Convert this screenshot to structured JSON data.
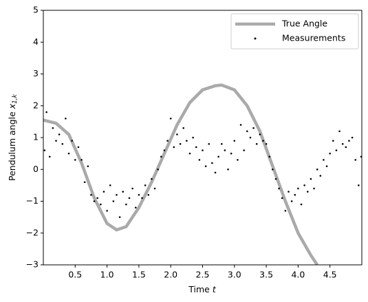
{
  "chart_data": {
    "type": "line",
    "xlabel": "Time",
    "xlabel_var": "t",
    "ylabel": "Pendulum angle",
    "ylabel_var": "x",
    "ylabel_sub": "1,k",
    "xlim": [
      0.0,
      5.0
    ],
    "ylim": [
      -3,
      5
    ],
    "xticks": [
      0.5,
      {
        "value": 1,
        "label": "1.0"
      },
      1.5,
      {
        "value": 2,
        "label": "2.0"
      },
      2.5,
      {
        "value": 3,
        "label": "3.0"
      },
      3.5,
      {
        "value": 4,
        "label": "4.0"
      },
      4.5
    ],
    "yticks": [
      {
        "value": -3,
        "label": "−3"
      },
      {
        "value": -2,
        "label": "−2"
      },
      {
        "value": -1,
        "label": "−1"
      },
      0,
      1,
      2,
      3,
      4,
      5
    ],
    "legend": "upper right",
    "series": [
      {
        "name": "True Angle",
        "kind": "line",
        "color": "#aaaaaa",
        "x": [
          0,
          0.2,
          0.4,
          0.6,
          0.8,
          1.0,
          1.15,
          1.3,
          1.5,
          1.7,
          1.9,
          2.1,
          2.3,
          2.5,
          2.7,
          2.8,
          3.0,
          3.2,
          3.4,
          3.6,
          3.8,
          4.0,
          4.2,
          4.3
        ],
        "values": [
          1.55,
          1.45,
          1.1,
          0.2,
          -0.9,
          -1.7,
          -1.9,
          -1.8,
          -1.2,
          -0.4,
          0.5,
          1.4,
          2.1,
          2.5,
          2.63,
          2.65,
          2.5,
          2.0,
          1.2,
          0.1,
          -1.0,
          -2.0,
          -2.7,
          -3.0
        ]
      },
      {
        "name": "Measurements",
        "kind": "scatter",
        "color": "#000000",
        "x": [
          0.02,
          0.05,
          0.1,
          0.15,
          0.2,
          0.25,
          0.3,
          0.35,
          0.4,
          0.45,
          0.5,
          0.55,
          0.6,
          0.65,
          0.7,
          0.75,
          0.8,
          0.85,
          0.9,
          0.95,
          1.0,
          1.05,
          1.1,
          1.15,
          1.2,
          1.25,
          1.3,
          1.35,
          1.4,
          1.45,
          1.5,
          1.55,
          1.6,
          1.65,
          1.7,
          1.75,
          1.8,
          1.85,
          1.9,
          1.95,
          2.0,
          2.05,
          2.1,
          2.15,
          2.2,
          2.25,
          2.3,
          2.35,
          2.4,
          2.45,
          2.5,
          2.55,
          2.6,
          2.65,
          2.7,
          2.75,
          2.8,
          2.85,
          2.9,
          2.95,
          3.0,
          3.05,
          3.1,
          3.15,
          3.2,
          3.25,
          3.3,
          3.35,
          3.4,
          3.45,
          3.5,
          3.55,
          3.6,
          3.65,
          3.7,
          3.75,
          3.8,
          3.85,
          3.9,
          3.95,
          4.0,
          4.05,
          4.1,
          4.15,
          4.2,
          4.25,
          4.3,
          4.35,
          4.4,
          4.45,
          4.5,
          4.55,
          4.6,
          4.65,
          4.7,
          4.75,
          4.8,
          4.85,
          4.9,
          4.95,
          4.99
        ],
        "values": [
          0.6,
          1.8,
          0.4,
          1.3,
          0.9,
          1.1,
          0.8,
          1.6,
          0.5,
          0.9,
          0.3,
          0.7,
          0.3,
          -0.4,
          0.1,
          -0.8,
          -1.0,
          -0.9,
          -1.1,
          -0.7,
          -1.3,
          -0.5,
          -1.0,
          -0.8,
          -1.5,
          -0.7,
          -1.1,
          -0.9,
          -0.6,
          -1.2,
          -0.8,
          -0.9,
          -0.5,
          -0.8,
          -0.3,
          -0.6,
          0.0,
          0.4,
          0.6,
          0.9,
          1.6,
          0.7,
          1.1,
          0.8,
          1.3,
          0.9,
          0.5,
          1.0,
          0.7,
          0.3,
          0.6,
          0.1,
          0.8,
          0.2,
          -0.1,
          0.4,
          0.8,
          0.6,
          0.0,
          0.5,
          0.9,
          0.3,
          1.4,
          0.6,
          1.2,
          1.0,
          1.3,
          0.8,
          1.1,
          0.9,
          0.8,
          0.4,
          0.0,
          -0.3,
          -0.6,
          -0.9,
          -1.3,
          -0.7,
          -1.0,
          -0.8,
          -0.6,
          -1.1,
          -0.5,
          -0.7,
          -0.3,
          -0.6,
          0.0,
          -0.2,
          0.3,
          0.1,
          0.5,
          0.9,
          0.6,
          1.2,
          0.8,
          0.7,
          0.9,
          1.0,
          0.3,
          -0.5,
          0.4
        ]
      }
    ]
  }
}
